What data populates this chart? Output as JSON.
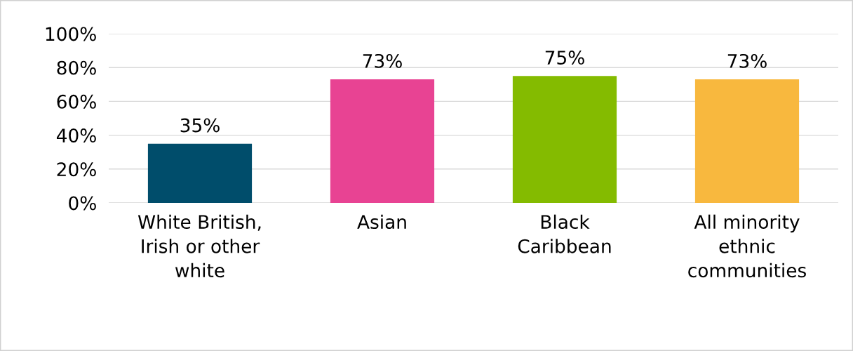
{
  "chart_data": {
    "type": "bar",
    "categories": [
      "White British,\nIrish or other\nwhite",
      "Asian",
      "Black\nCaribbean",
      "All minority\nethnic\ncommunities"
    ],
    "values": [
      35,
      73,
      75,
      73
    ],
    "colors": [
      "#004d6b",
      "#e84393",
      "#84bb00",
      "#f8b83e"
    ],
    "value_labels": [
      "35%",
      "73%",
      "75%",
      "73%"
    ],
    "ylim": [
      0,
      100
    ],
    "yticks": [
      {
        "value": 0,
        "label": "0%"
      },
      {
        "value": 20,
        "label": "20%"
      },
      {
        "value": 40,
        "label": "40%"
      },
      {
        "value": 60,
        "label": "60%"
      },
      {
        "value": 80,
        "label": "80%"
      },
      {
        "value": 100,
        "label": "100%"
      }
    ],
    "grid": "y"
  }
}
